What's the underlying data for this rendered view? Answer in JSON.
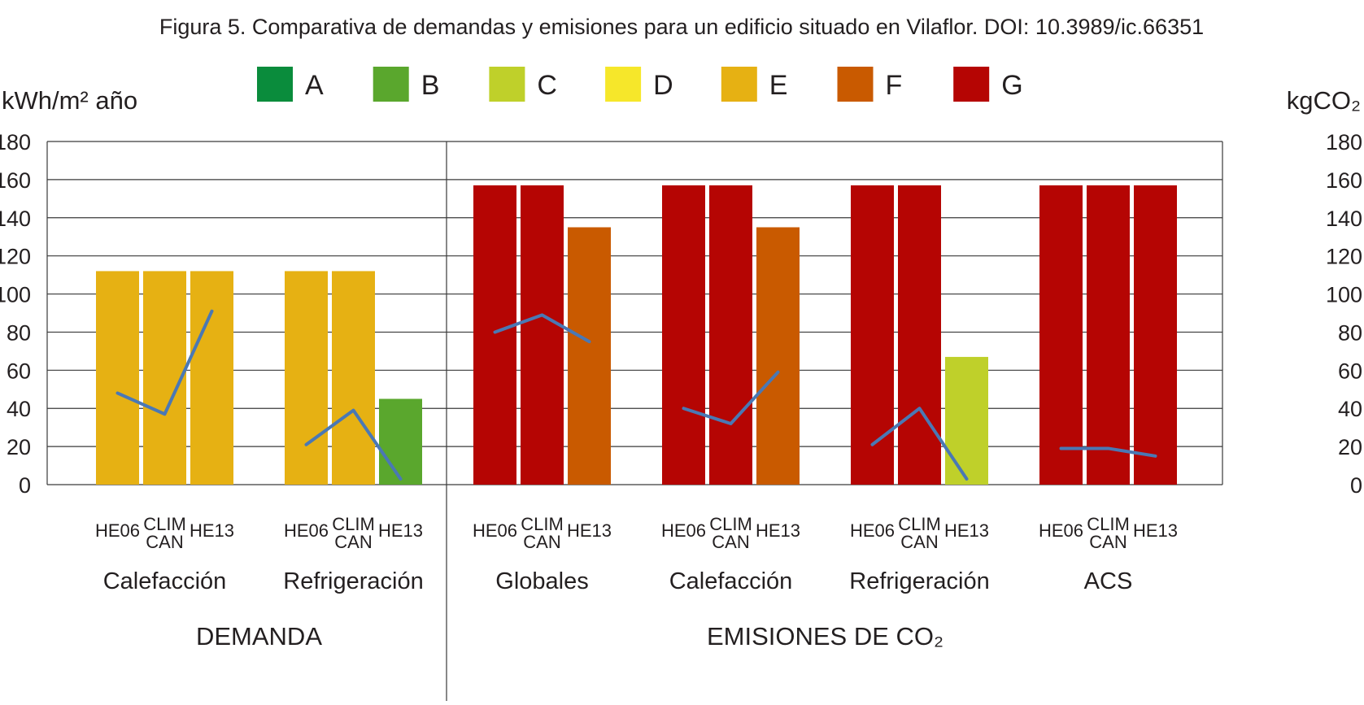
{
  "title": "Figura 5. Comparativa de demandas y emisiones para un edificio situado en Vilaflor. DOI: 10.3989/ic.66351",
  "legend": [
    {
      "label": "A",
      "color": "#0a8c3c"
    },
    {
      "label": "B",
      "color": "#5aa72d"
    },
    {
      "label": "C",
      "color": "#bfd02a"
    },
    {
      "label": "D",
      "color": "#f6e72a"
    },
    {
      "label": "E",
      "color": "#e6b113"
    },
    {
      "label": "F",
      "color": "#c95a00"
    },
    {
      "label": "G",
      "color": "#b50503"
    }
  ],
  "chart_data": {
    "type": "bar",
    "title": "Figura 5. Comparativa de demandas y emisiones para un edificio situado en Vilaflor. DOI: 10.3989/ic.66351",
    "ylabel_left": "kWh/m² año",
    "ylabel_right": "kgCO₂",
    "ylim": [
      0,
      180
    ],
    "yticks": [
      0,
      20,
      40,
      60,
      80,
      100,
      120,
      140,
      160,
      180
    ],
    "grid": true,
    "legend_position": "top",
    "line_color": "#4a78b4",
    "sections": [
      {
        "label": "DEMANDA",
        "group_count": 2
      },
      {
        "label": "EMISIONES DE CO₂",
        "group_count": 4
      }
    ],
    "groups": [
      {
        "label": "Calefacción",
        "bars": [
          {
            "name": "HE06",
            "rating": "E",
            "value": 112
          },
          {
            "name": "CLIM CAN",
            "rating": "E",
            "value": 112
          },
          {
            "name": "HE13",
            "rating": "E",
            "value": 112
          }
        ],
        "line": [
          48,
          37,
          91
        ]
      },
      {
        "label": "Refrigeración",
        "bars": [
          {
            "name": "HE06",
            "rating": "E",
            "value": 112
          },
          {
            "name": "CLIM CAN",
            "rating": "E",
            "value": 112
          },
          {
            "name": "HE13",
            "rating": "B",
            "value": 45
          }
        ],
        "line": [
          21,
          39,
          3
        ]
      },
      {
        "label": "Globales",
        "bars": [
          {
            "name": "HE06",
            "rating": "G",
            "value": 157
          },
          {
            "name": "CLIM CAN",
            "rating": "G",
            "value": 157
          },
          {
            "name": "HE13",
            "rating": "F",
            "value": 135
          }
        ],
        "line": [
          80,
          89,
          75
        ]
      },
      {
        "label": "Calefacción",
        "bars": [
          {
            "name": "HE06",
            "rating": "G",
            "value": 157
          },
          {
            "name": "CLIM CAN",
            "rating": "G",
            "value": 157
          },
          {
            "name": "HE13",
            "rating": "F",
            "value": 135
          }
        ],
        "line": [
          40,
          32,
          59
        ]
      },
      {
        "label": "Refrigeración",
        "bars": [
          {
            "name": "HE06",
            "rating": "G",
            "value": 157
          },
          {
            "name": "CLIM CAN",
            "rating": "G",
            "value": 157
          },
          {
            "name": "HE13",
            "rating": "C",
            "value": 67
          }
        ],
        "line": [
          21,
          40,
          3
        ]
      },
      {
        "label": "ACS",
        "bars": [
          {
            "name": "HE06",
            "rating": "G",
            "value": 157
          },
          {
            "name": "CLIM CAN",
            "rating": "G",
            "value": 157
          },
          {
            "name": "HE13",
            "rating": "G",
            "value": 157
          }
        ],
        "line": [
          19,
          19,
          15
        ]
      }
    ]
  }
}
